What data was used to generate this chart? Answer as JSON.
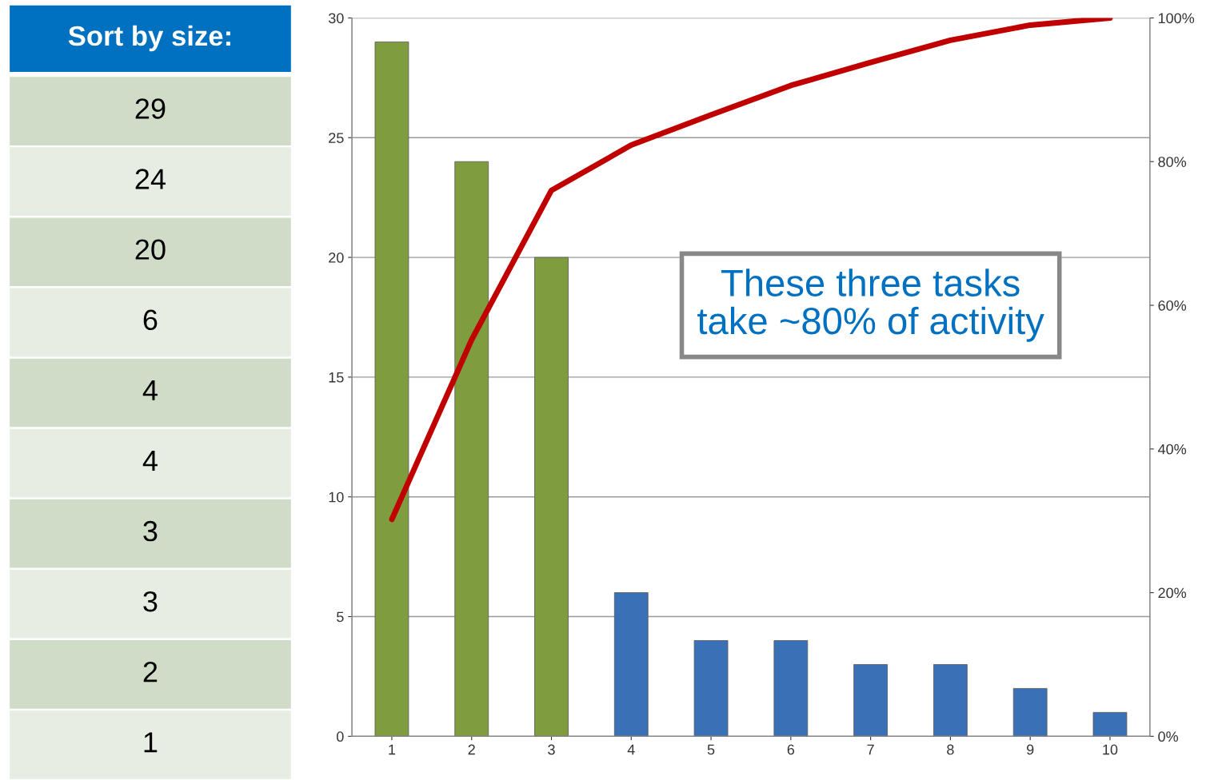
{
  "chart_data": [
    {
      "type": "other",
      "title": "Sort by size:",
      "annotations": [
        "29",
        "24",
        "20",
        "6",
        "4",
        "4",
        "3",
        "3",
        "2",
        "1"
      ]
    },
    {
      "type": "bar",
      "categories": [
        "1",
        "2",
        "3",
        "4",
        "5",
        "6",
        "7",
        "8",
        "9",
        "10"
      ],
      "series": [
        {
          "colors": [
            "#7f9c3f",
            "#7f9c3f",
            "#7f9c3f",
            "#3a70b5",
            "#3a70b5",
            "#3a70b5",
            "#3a70b5",
            "#3a70b5",
            "#3a70b5",
            "#3a70b5"
          ],
          "values": [
            29,
            24,
            20,
            6,
            4,
            4,
            3,
            3,
            2,
            1
          ]
        },
        {
          "type": "line",
          "axis": "y2",
          "color": "#c00000",
          "values": [
            30.2,
            55.2,
            76.0,
            82.3,
            86.5,
            90.6,
            93.8,
            96.9,
            99.0,
            100
          ]
        }
      ],
      "ylim": [
        0,
        30
      ],
      "yticks": [
        0,
        5,
        10,
        15,
        20,
        25,
        30
      ],
      "y2lim": [
        0,
        100
      ],
      "y2ticks": [
        {
          "value": 0,
          "label": "0%"
        },
        {
          "value": 20,
          "label": "20%"
        },
        {
          "value": 40,
          "label": "40%"
        },
        {
          "value": 60,
          "label": "60%"
        },
        {
          "value": 80,
          "label": "80%"
        },
        {
          "value": 100,
          "label": "100%"
        }
      ],
      "grid": "y",
      "annotations": [
        "These three tasks\ntake ~80% of activity"
      ]
    }
  ]
}
